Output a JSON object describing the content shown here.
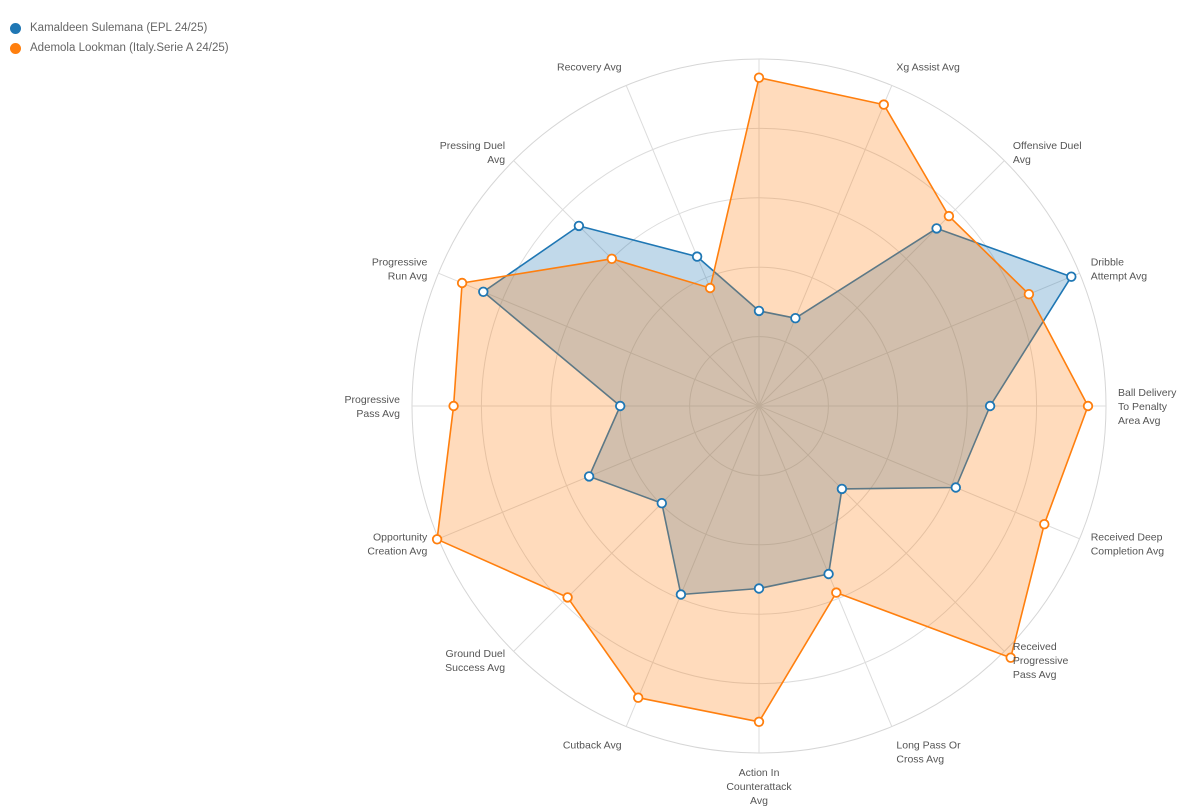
{
  "chart_data": {
    "type": "radar",
    "title": "",
    "axes": [
      "",
      "Xg Assist Avg",
      "Offensive Duel Avg",
      "Dribble Attempt Avg",
      "Ball Delivery To Penalty Area Avg",
      "Received Deep Completion Avg",
      "Received Progressive Pass Avg",
      "Long Pass Or Cross Avg",
      "Action In Counterattack Avg",
      "Cutback Avg",
      "Ground Duel Success Avg",
      "Opportunity Creation Avg",
      "Progressive Pass Avg",
      "Progressive Run Avg",
      "Pressing Duel Avg",
      "Recovery Avg"
    ],
    "axis_label_lines": [
      [
        ""
      ],
      [
        "Xg Assist Avg"
      ],
      [
        "Offensive Duel",
        "Avg"
      ],
      [
        "Dribble",
        "Attempt Avg"
      ],
      [
        "Ball Delivery",
        "To Penalty",
        "Area Avg"
      ],
      [
        "Received Deep",
        "Completion Avg"
      ],
      [
        "Received",
        "Progressive",
        "Pass Avg"
      ],
      [
        "Long Pass Or",
        "Cross Avg"
      ],
      [
        "Action In",
        "Counterattack",
        "Avg"
      ],
      [
        "Cutback Avg"
      ],
      [
        "Ground Duel",
        "Success Avg"
      ],
      [
        "Opportunity",
        "Creation Avg"
      ],
      [
        "Progressive",
        "Pass Avg"
      ],
      [
        "Progressive",
        "Run Avg"
      ],
      [
        "Pressing Duel",
        "Avg"
      ],
      [
        "Recovery Avg"
      ]
    ],
    "range": [
      0,
      5
    ],
    "grid_levels": 5,
    "grid": true,
    "legend_position": "top-left",
    "series": [
      {
        "name": "Kamaldeen Sulemana (EPL 24/25)",
        "color": "#1f77b4",
        "fill": "rgba(31,119,180,0.28)",
        "values": [
          1.37,
          1.37,
          3.62,
          4.87,
          3.33,
          3.07,
          1.69,
          2.62,
          2.63,
          2.94,
          1.98,
          2.65,
          2.0,
          4.3,
          3.67,
          2.33
        ]
      },
      {
        "name": "Ademola Lookman (Italy.Serie A 24/25)",
        "color": "#ff7f0e",
        "fill": "rgba(255,127,14,0.28)",
        "values": [
          4.73,
          4.7,
          3.87,
          4.21,
          4.74,
          4.45,
          5.13,
          2.91,
          4.55,
          4.55,
          3.9,
          5.02,
          4.4,
          4.63,
          3.0,
          1.84
        ]
      }
    ]
  }
}
